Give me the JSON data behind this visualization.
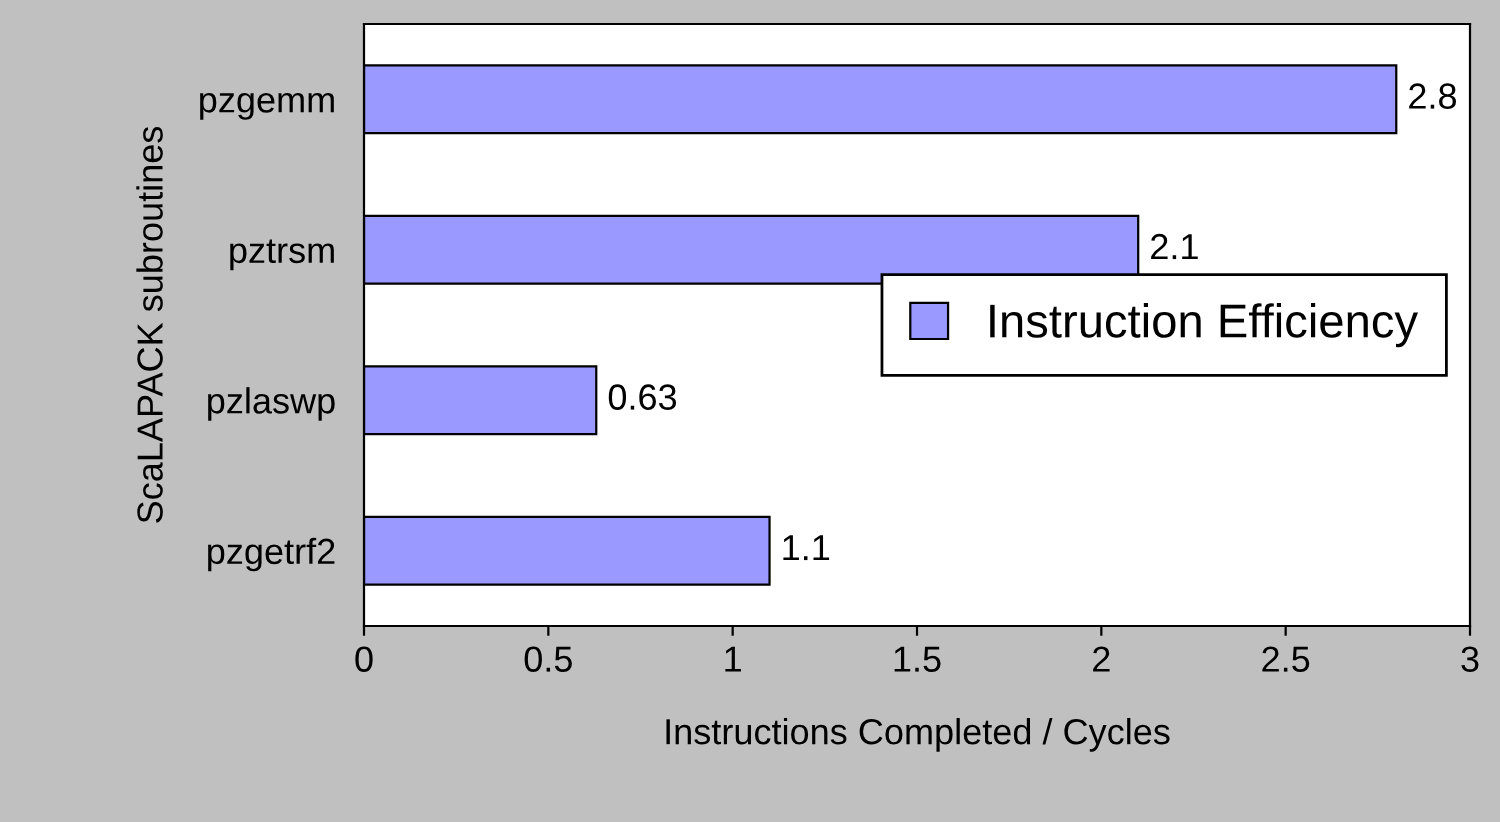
{
  "chart_data": {
    "type": "bar",
    "orientation": "horizontal",
    "xlabel": "Instructions Completed / Cycles",
    "ylabel": "ScaLAPACK subroutines",
    "categories": [
      "pzgemm",
      "pztrsm",
      "pzlaswp",
      "pzgetrf2"
    ],
    "series": [
      {
        "name": "Instruction Efficiency",
        "color": "#9999ff",
        "values": [
          2.8,
          2.1,
          0.63,
          1.1
        ]
      }
    ],
    "xlim": [
      0,
      3
    ],
    "xticks": [
      0,
      0.5,
      1,
      1.5,
      2,
      2.5,
      3
    ],
    "data_labels": true,
    "grid": false,
    "legend": "right"
  }
}
